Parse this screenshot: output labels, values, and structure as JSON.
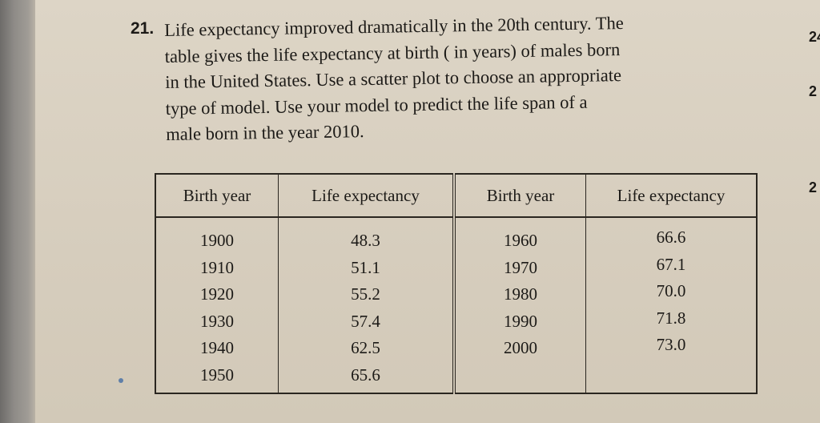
{
  "problem": {
    "number": "21.",
    "lines": [
      "Life expectancy improved dramatically in the 20th century. The",
      "table gives the life expectancy at birth ( in years) of males born",
      "in the United States. Use a scatter plot to choose an appropriate",
      "type of model. Use your model to predict the life span of a",
      "male born in the year 2010."
    ]
  },
  "margin_fragments": [
    "24",
    "2",
    "2"
  ],
  "table": {
    "headers": [
      "Birth year",
      "Life expectancy",
      "Birth year",
      "Life expectancy"
    ],
    "left": {
      "years": [
        "1900",
        "1910",
        "1920",
        "1930",
        "1940",
        "1950"
      ],
      "values": [
        "48.3",
        "51.1",
        "55.2",
        "57.4",
        "62.5",
        "65.6"
      ]
    },
    "right": {
      "years": [
        "1960",
        "1970",
        "1980",
        "1990",
        "2000"
      ],
      "values": [
        "66.6",
        "67.1",
        "70.0",
        "71.8",
        "73.0"
      ]
    }
  }
}
